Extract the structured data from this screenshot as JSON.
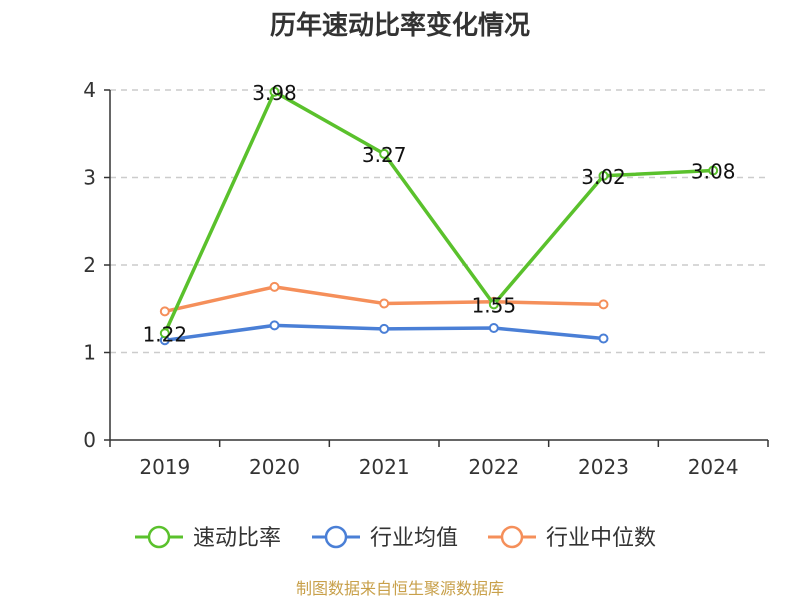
{
  "chart_data": {
    "type": "line",
    "title": "历年速动比率变化情况",
    "categories": [
      "2019",
      "2020",
      "2021",
      "2022",
      "2023",
      "2024"
    ],
    "ylim": [
      0,
      4
    ],
    "yticks": [
      "0",
      "1",
      "2",
      "3",
      "4"
    ],
    "grid": true,
    "legend_position": "bottom",
    "series": [
      {
        "name": "速动比率",
        "color": "#5ac12c",
        "values": [
          1.22,
          3.98,
          3.27,
          1.55,
          3.02,
          3.08
        ],
        "labels": [
          "1.22",
          "3.98",
          "3.27",
          "1.55",
          "3.02",
          "3.08"
        ]
      },
      {
        "name": "行业均值",
        "color": "#4a7fd6",
        "values": [
          1.14,
          1.31,
          1.27,
          1.28,
          1.16,
          null
        ]
      },
      {
        "name": "行业中位数",
        "color": "#f58f5a",
        "values": [
          1.47,
          1.75,
          1.56,
          1.58,
          1.55,
          null
        ]
      }
    ]
  },
  "footer": {
    "source": "制图数据来自恒生聚源数据库"
  }
}
